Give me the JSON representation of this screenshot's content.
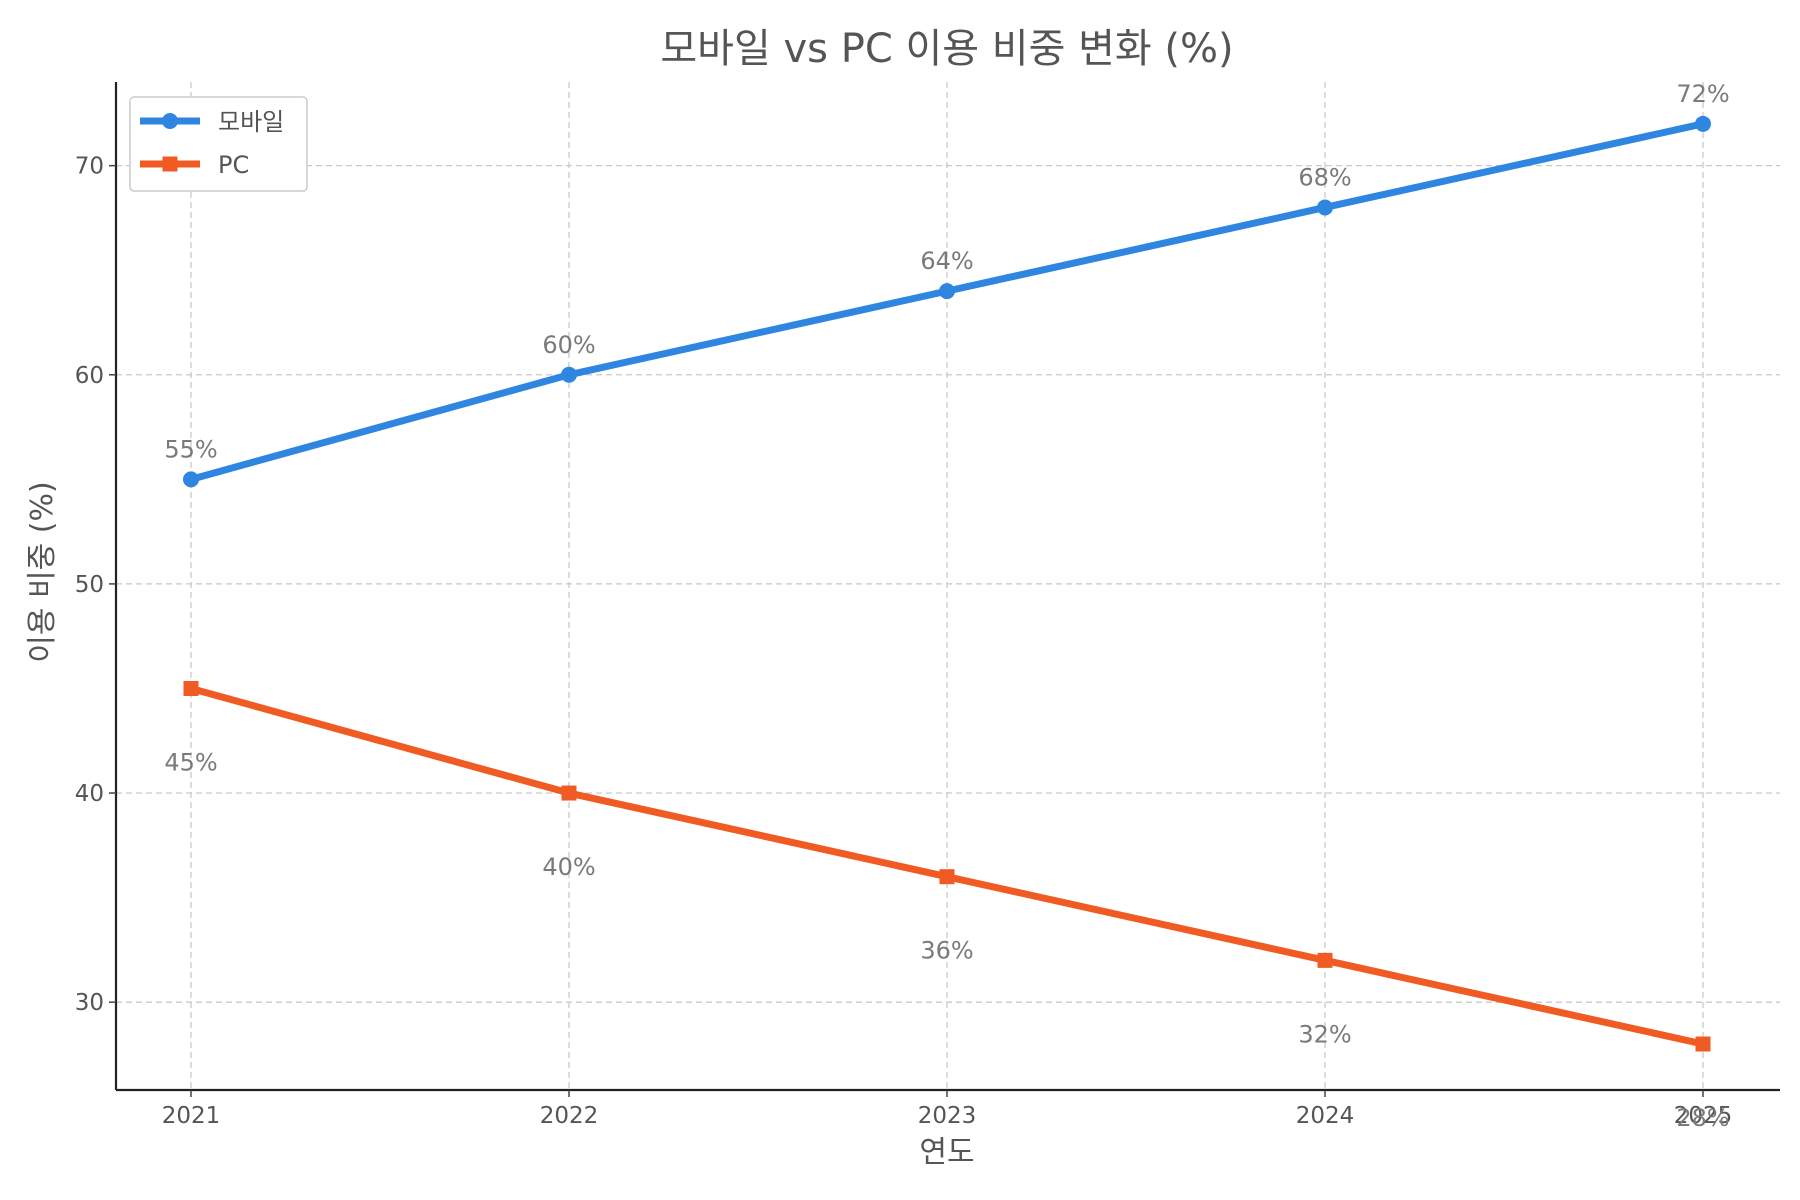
{
  "chart_data": {
    "type": "line",
    "title": "모바일 vs PC 이용 비중 변화 (%)",
    "xlabel": "연도",
    "ylabel": "이용 비중 (%)",
    "categories": [
      "2021",
      "2022",
      "2023",
      "2024",
      "2025"
    ],
    "ylim": [
      25.8,
      74
    ],
    "yticks": [
      30,
      40,
      50,
      60,
      70
    ],
    "grid": true,
    "legend_position": "top-left",
    "series": [
      {
        "name": "모바일",
        "values": [
          55,
          60,
          64,
          68,
          72
        ],
        "labels": [
          "55%",
          "60%",
          "64%",
          "68%",
          "72%"
        ],
        "color": "#2f86e0",
        "marker": "circle",
        "label_position": "above"
      },
      {
        "name": "PC",
        "values": [
          45,
          40,
          36,
          32,
          28
        ],
        "labels": [
          "45%",
          "40%",
          "36%",
          "32%",
          "28%"
        ],
        "color": "#f05a23",
        "marker": "square",
        "label_position": "below"
      }
    ]
  }
}
